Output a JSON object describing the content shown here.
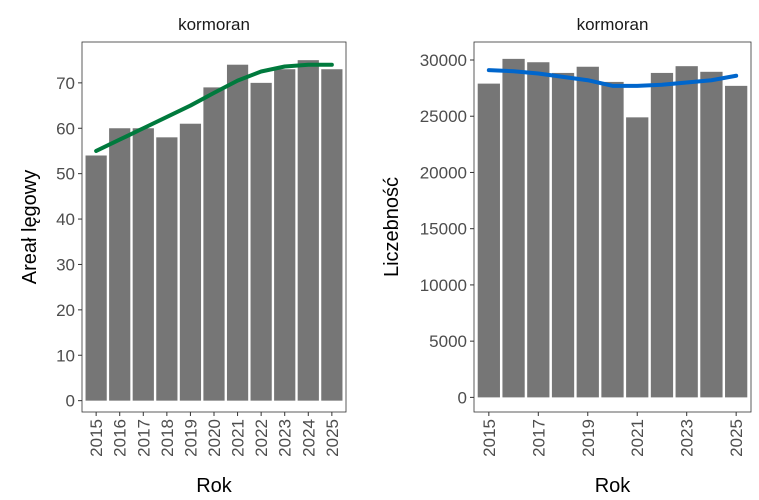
{
  "chart_data": [
    {
      "type": "bar",
      "title": "kormoran",
      "xlabel": "Rok",
      "ylabel": "Areał lęgowy",
      "categories": [
        "2015",
        "2016",
        "2017",
        "2018",
        "2019",
        "2020",
        "2021",
        "2022",
        "2023",
        "2024",
        "2025"
      ],
      "xtick_labels": [
        "2015",
        "2016",
        "2017",
        "2018",
        "2019",
        "2020",
        "2021",
        "2022",
        "2023",
        "2024",
        "2025"
      ],
      "values": [
        54,
        60,
        60,
        58,
        61,
        69,
        74,
        70,
        73,
        75,
        73
      ],
      "trend": [
        55,
        57.5,
        60,
        62.5,
        65,
        67.8,
        70.5,
        72.5,
        73.6,
        74,
        74
      ],
      "ylim": [
        -2.5,
        79
      ],
      "yticks": [
        0,
        10,
        20,
        30,
        40,
        50,
        60,
        70
      ],
      "bar_color": "#767676",
      "trend_color": "#007a3d",
      "grid": false
    },
    {
      "type": "bar",
      "title": "kormoran",
      "xlabel": "Rok",
      "ylabel": "Liczebność",
      "categories": [
        "2015",
        "2016",
        "2017",
        "2018",
        "2019",
        "2020",
        "2021",
        "2022",
        "2023",
        "2024",
        "2025"
      ],
      "xtick_labels": [
        "2015",
        "2017",
        "2019",
        "2021",
        "2023",
        "2025"
      ],
      "values": [
        27900,
        30100,
        29800,
        28850,
        29400,
        28050,
        24900,
        28850,
        29450,
        28950,
        27700
      ],
      "trend": [
        29100,
        29000,
        28800,
        28500,
        28200,
        27700,
        27700,
        27800,
        28000,
        28200,
        28600
      ],
      "ylim": [
        -1300,
        31600
      ],
      "yticks": [
        0,
        5000,
        10000,
        15000,
        20000,
        25000,
        30000
      ],
      "bar_color": "#767676",
      "trend_color": "#0066cc",
      "grid": false
    }
  ]
}
